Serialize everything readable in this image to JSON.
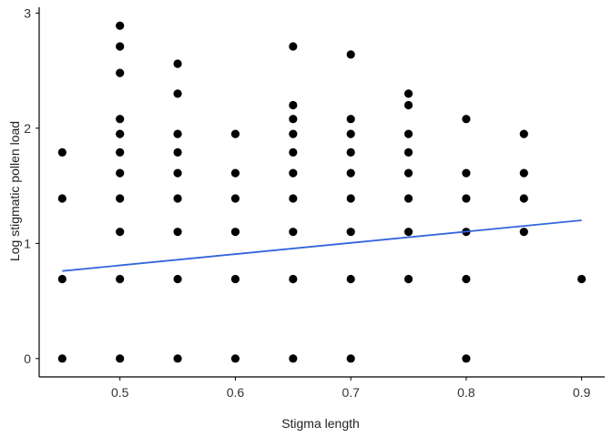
{
  "chart_data": {
    "type": "scatter",
    "title": "",
    "xlabel": "Stigma length",
    "ylabel": "Log stigmatic pollen load",
    "xlim": [
      0.43,
      0.92
    ],
    "ylim": [
      -0.12,
      3.05
    ],
    "x_ticks": [
      0.5,
      0.6,
      0.7,
      0.8,
      0.9
    ],
    "x_tick_labels": [
      "0.5",
      "0.6",
      "0.7",
      "0.8",
      "0.9"
    ],
    "y_ticks": [
      0,
      1,
      2,
      3
    ],
    "y_tick_labels": [
      "0",
      "1",
      "2",
      "3"
    ],
    "grid": false,
    "legend": "none",
    "colors": {
      "points": "#000000",
      "trend": "#3366dd",
      "axis": "#000000"
    },
    "points": [
      {
        "x": 0.45,
        "y": 0
      },
      {
        "x": 0.45,
        "y": 0.69
      },
      {
        "x": 0.45,
        "y": 1.39
      },
      {
        "x": 0.45,
        "y": 1.79
      },
      {
        "x": 0.5,
        "y": 0
      },
      {
        "x": 0.5,
        "y": 0.69
      },
      {
        "x": 0.5,
        "y": 1.1
      },
      {
        "x": 0.5,
        "y": 1.39
      },
      {
        "x": 0.5,
        "y": 1.61
      },
      {
        "x": 0.5,
        "y": 1.79
      },
      {
        "x": 0.5,
        "y": 1.95
      },
      {
        "x": 0.5,
        "y": 2.08
      },
      {
        "x": 0.5,
        "y": 2.48
      },
      {
        "x": 0.5,
        "y": 2.71
      },
      {
        "x": 0.5,
        "y": 2.89
      },
      {
        "x": 0.55,
        "y": 0
      },
      {
        "x": 0.55,
        "y": 0.69
      },
      {
        "x": 0.55,
        "y": 1.1
      },
      {
        "x": 0.55,
        "y": 1.39
      },
      {
        "x": 0.55,
        "y": 1.61
      },
      {
        "x": 0.55,
        "y": 1.79
      },
      {
        "x": 0.55,
        "y": 1.95
      },
      {
        "x": 0.55,
        "y": 2.3
      },
      {
        "x": 0.55,
        "y": 2.56
      },
      {
        "x": 0.6,
        "y": 0
      },
      {
        "x": 0.6,
        "y": 0.69
      },
      {
        "x": 0.6,
        "y": 1.1
      },
      {
        "x": 0.6,
        "y": 1.39
      },
      {
        "x": 0.6,
        "y": 1.61
      },
      {
        "x": 0.6,
        "y": 1.95
      },
      {
        "x": 0.65,
        "y": 0
      },
      {
        "x": 0.65,
        "y": 0.69
      },
      {
        "x": 0.65,
        "y": 1.1
      },
      {
        "x": 0.65,
        "y": 1.39
      },
      {
        "x": 0.65,
        "y": 1.61
      },
      {
        "x": 0.65,
        "y": 1.79
      },
      {
        "x": 0.65,
        "y": 1.95
      },
      {
        "x": 0.65,
        "y": 2.08
      },
      {
        "x": 0.65,
        "y": 2.2
      },
      {
        "x": 0.65,
        "y": 2.71
      },
      {
        "x": 0.7,
        "y": 0
      },
      {
        "x": 0.7,
        "y": 0.69
      },
      {
        "x": 0.7,
        "y": 1.1
      },
      {
        "x": 0.7,
        "y": 1.39
      },
      {
        "x": 0.7,
        "y": 1.61
      },
      {
        "x": 0.7,
        "y": 1.79
      },
      {
        "x": 0.7,
        "y": 1.95
      },
      {
        "x": 0.7,
        "y": 2.08
      },
      {
        "x": 0.7,
        "y": 2.64
      },
      {
        "x": 0.75,
        "y": 0.69
      },
      {
        "x": 0.75,
        "y": 1.1
      },
      {
        "x": 0.75,
        "y": 1.39
      },
      {
        "x": 0.75,
        "y": 1.61
      },
      {
        "x": 0.75,
        "y": 1.79
      },
      {
        "x": 0.75,
        "y": 1.95
      },
      {
        "x": 0.75,
        "y": 2.2
      },
      {
        "x": 0.75,
        "y": 2.3
      },
      {
        "x": 0.8,
        "y": 0
      },
      {
        "x": 0.8,
        "y": 0.69
      },
      {
        "x": 0.8,
        "y": 1.1
      },
      {
        "x": 0.8,
        "y": 1.39
      },
      {
        "x": 0.8,
        "y": 1.61
      },
      {
        "x": 0.8,
        "y": 2.08
      },
      {
        "x": 0.85,
        "y": 1.1
      },
      {
        "x": 0.85,
        "y": 1.39
      },
      {
        "x": 0.85,
        "y": 1.61
      },
      {
        "x": 0.85,
        "y": 1.95
      },
      {
        "x": 0.9,
        "y": 0.69
      }
    ],
    "trend_line": {
      "type": "linear",
      "x": [
        0.45,
        0.9
      ],
      "y": [
        0.76,
        1.2
      ]
    }
  }
}
